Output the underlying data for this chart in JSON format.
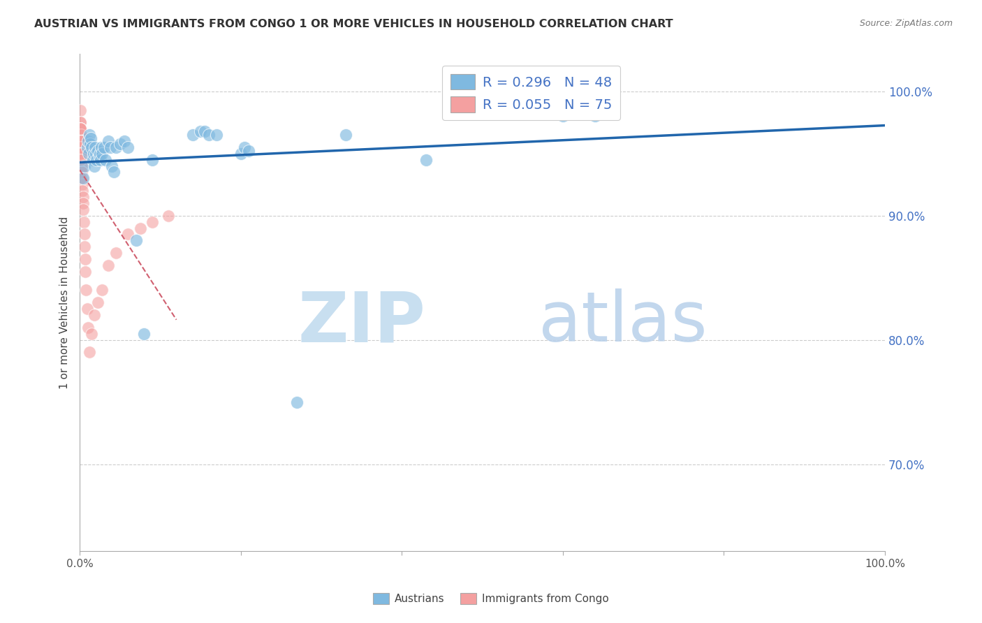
{
  "title": "AUSTRIAN VS IMMIGRANTS FROM CONGO 1 OR MORE VEHICLES IN HOUSEHOLD CORRELATION CHART",
  "source": "Source: ZipAtlas.com",
  "ylabel": "1 or more Vehicles in Household",
  "blue_color": "#7fb9e0",
  "pink_color": "#f4a0a0",
  "blue_line_color": "#2166ac",
  "pink_line_color": "#d06070",
  "legend1_label": "R = 0.296   N = 48",
  "legend2_label": "R = 0.055   N = 75",
  "legend_label1": "Austrians",
  "legend_label2": "Immigrants from Congo",
  "austrians_x": [
    0.4,
    0.6,
    0.9,
    1.0,
    1.1,
    1.2,
    1.3,
    1.4,
    1.5,
    1.6,
    1.7,
    1.8,
    1.9,
    2.0,
    2.1,
    2.2,
    2.4,
    2.5,
    2.6,
    2.7,
    2.8,
    3.0,
    3.2,
    3.5,
    3.8,
    4.0,
    4.2,
    4.5,
    5.0,
    5.5,
    6.0,
    7.0,
    8.0,
    9.0,
    14.0,
    15.0,
    15.5,
    16.0,
    17.0,
    20.0,
    20.5,
    21.0,
    27.0,
    33.0,
    43.0,
    60.0,
    64.0,
    66.0
  ],
  "austrians_y": [
    93.0,
    94.0,
    95.5,
    96.0,
    95.0,
    96.5,
    95.8,
    96.2,
    95.5,
    94.5,
    95.0,
    94.0,
    95.5,
    95.0,
    94.5,
    95.2,
    94.8,
    95.0,
    94.5,
    95.5,
    95.0,
    95.5,
    94.5,
    96.0,
    95.5,
    94.0,
    93.5,
    95.5,
    95.8,
    96.0,
    95.5,
    88.0,
    80.5,
    94.5,
    96.5,
    96.8,
    96.8,
    96.5,
    96.5,
    95.0,
    95.5,
    95.2,
    75.0,
    96.5,
    94.5,
    98.0,
    98.0,
    100.0
  ],
  "congo_x": [
    0.05,
    0.05,
    0.05,
    0.05,
    0.05,
    0.07,
    0.07,
    0.07,
    0.07,
    0.08,
    0.08,
    0.08,
    0.08,
    0.08,
    0.09,
    0.09,
    0.09,
    0.09,
    0.1,
    0.1,
    0.1,
    0.1,
    0.1,
    0.12,
    0.12,
    0.13,
    0.13,
    0.14,
    0.14,
    0.15,
    0.15,
    0.16,
    0.16,
    0.17,
    0.18,
    0.18,
    0.19,
    0.2,
    0.2,
    0.21,
    0.22,
    0.23,
    0.25,
    0.26,
    0.28,
    0.3,
    0.32,
    0.35,
    0.38,
    0.42,
    0.45,
    0.5,
    0.55,
    0.6,
    0.65,
    0.7,
    0.8,
    0.9,
    1.0,
    1.2,
    1.5,
    1.8,
    2.2,
    2.8,
    3.5,
    4.5,
    6.0,
    7.5,
    9.0,
    11.0,
    0.06,
    0.06,
    0.08,
    0.11,
    0.15
  ],
  "congo_y": [
    98.5,
    97.5,
    97.0,
    96.5,
    96.0,
    97.5,
    97.0,
    96.5,
    96.0,
    97.0,
    96.5,
    96.0,
    95.5,
    95.0,
    97.0,
    96.5,
    96.0,
    95.5,
    97.0,
    96.5,
    96.0,
    95.5,
    95.0,
    96.5,
    96.0,
    96.5,
    96.0,
    95.5,
    95.0,
    96.0,
    95.5,
    96.0,
    95.5,
    95.5,
    95.0,
    94.5,
    95.0,
    95.5,
    95.0,
    95.0,
    94.5,
    94.0,
    94.0,
    93.5,
    93.5,
    93.0,
    92.5,
    92.0,
    91.5,
    91.0,
    90.5,
    89.5,
    88.5,
    87.5,
    86.5,
    85.5,
    84.0,
    82.5,
    81.0,
    79.0,
    80.5,
    82.0,
    83.0,
    84.0,
    86.0,
    87.0,
    88.5,
    89.0,
    89.5,
    90.0,
    97.0,
    96.0,
    95.0,
    94.5,
    93.0
  ]
}
